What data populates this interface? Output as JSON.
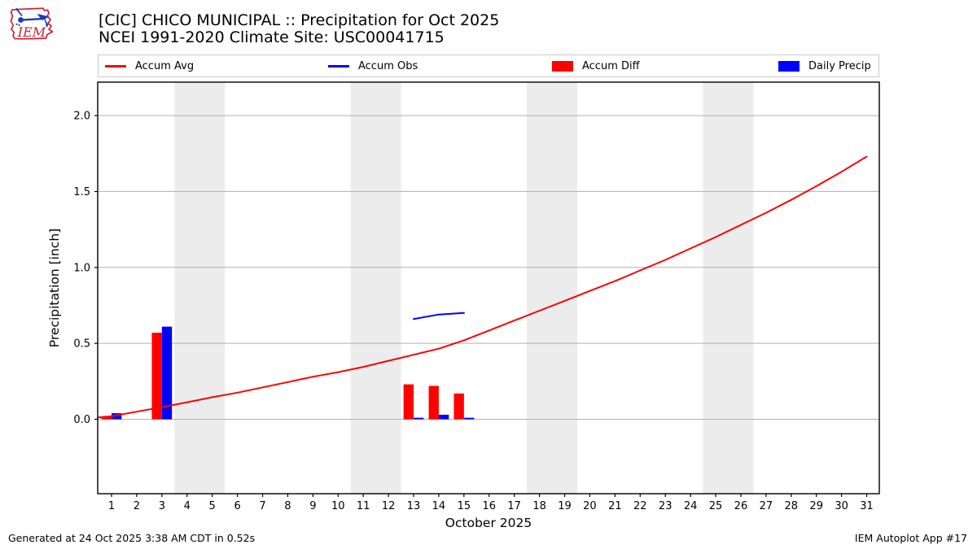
{
  "header": {
    "title_line1": "[CIC] CHICO MUNICIPAL :: Precipitation for Oct 2025",
    "title_line2": "NCEI 1991-2020 Climate Site: USC00041715",
    "logo_text": "IEM"
  },
  "legend": {
    "entries": [
      {
        "label": "Accum Avg",
        "swatch": "line",
        "color": "#ff0000"
      },
      {
        "label": "Accum Obs",
        "swatch": "line",
        "color": "#0000ff"
      },
      {
        "label": "Accum Diff",
        "swatch": "rect",
        "color": "#ff0000"
      },
      {
        "label": "Daily Precip",
        "swatch": "rect",
        "color": "#0000ff"
      }
    ]
  },
  "chart_data": {
    "type": "line+bar",
    "xlabel": "October 2025",
    "ylabel": "Precipitation [inch]",
    "xlim": [
      0.45,
      31.5
    ],
    "ylim": [
      -0.49,
      2.22
    ],
    "x_ticks": [
      1,
      2,
      3,
      4,
      5,
      6,
      7,
      8,
      9,
      10,
      11,
      12,
      13,
      14,
      15,
      16,
      17,
      18,
      19,
      20,
      21,
      22,
      23,
      24,
      25,
      26,
      27,
      28,
      29,
      30,
      31
    ],
    "y_ticks": [
      0.0,
      0.5,
      1.0,
      1.5,
      2.0
    ],
    "weekend_bands": [
      [
        3.5,
        5.5
      ],
      [
        10.5,
        12.5
      ],
      [
        17.5,
        19.5
      ],
      [
        24.5,
        26.5
      ]
    ],
    "colors": {
      "band": "#ececec",
      "grid": "#b0b0b0",
      "axis": "#000000",
      "accum_avg": "#ff0000",
      "accum_obs": "#0000ff",
      "accum_diff": "#ff0000",
      "daily_precip": "#0000ff"
    },
    "series": [
      {
        "name": "Accum Avg",
        "type": "line",
        "x": [
          0.45,
          1,
          2,
          3,
          4,
          5,
          6,
          7,
          8,
          9,
          10,
          11,
          12,
          13,
          14,
          15,
          16,
          17,
          18,
          19,
          20,
          21,
          22,
          23,
          24,
          25,
          26,
          27,
          28,
          29,
          30,
          31
        ],
        "y": [
          0.012,
          0.02,
          0.05,
          0.08,
          0.112,
          0.145,
          0.175,
          0.21,
          0.245,
          0.28,
          0.31,
          0.345,
          0.385,
          0.425,
          0.465,
          0.52,
          0.585,
          0.65,
          0.715,
          0.78,
          0.845,
          0.91,
          0.98,
          1.05,
          1.125,
          1.2,
          1.28,
          1.36,
          1.445,
          1.535,
          1.63,
          1.73
        ]
      },
      {
        "name": "Accum Obs",
        "type": "line",
        "x": [
          13,
          14,
          15
        ],
        "y": [
          0.66,
          0.69,
          0.7
        ]
      },
      {
        "name": "Accum Diff",
        "type": "bar",
        "offset": -0.2,
        "width": 0.4,
        "x": [
          1,
          3,
          13,
          14,
          15
        ],
        "y": [
          0.02,
          0.57,
          0.23,
          0.22,
          0.17
        ]
      },
      {
        "name": "Daily Precip",
        "type": "bar",
        "offset": 0.2,
        "width": 0.4,
        "x": [
          1,
          3,
          13,
          14,
          15
        ],
        "y": [
          0.04,
          0.61,
          0.01,
          0.03,
          0.01
        ]
      }
    ]
  },
  "footer": {
    "left": "Generated at 24 Oct 2025 3:38 AM CDT in 0.52s",
    "right": "IEM Autoplot App #17"
  }
}
